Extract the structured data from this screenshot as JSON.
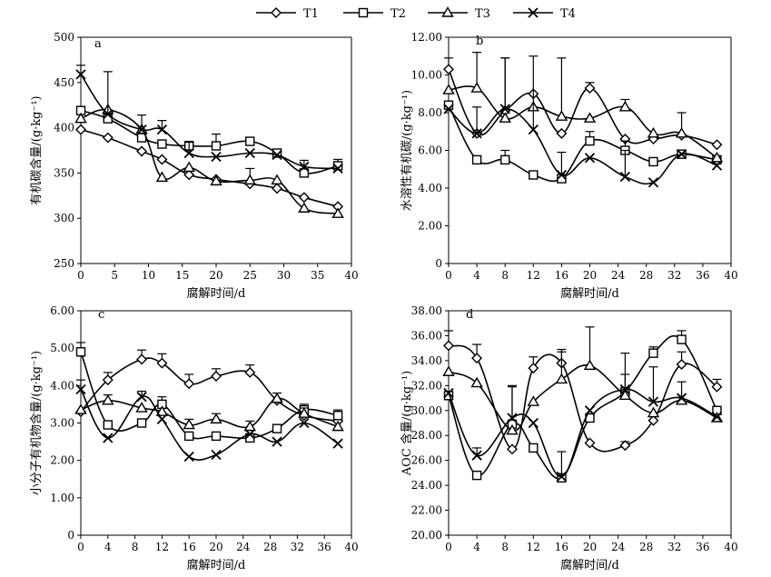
{
  "legend": [
    {
      "name": "T1",
      "marker": "diamond"
    },
    {
      "name": "T2",
      "marker": "square"
    },
    {
      "name": "T3",
      "marker": "triangle"
    },
    {
      "name": "T4",
      "marker": "cross"
    }
  ],
  "chart_data": [
    {
      "type": "line",
      "panel_label": "a",
      "xlabel": "腐解时间/d",
      "ylabel": "有机碳含量/(g·kg⁻¹)",
      "xlim": [
        0,
        40
      ],
      "ylim": [
        250,
        500
      ],
      "x_ticks": [
        0,
        5,
        10,
        15,
        20,
        25,
        30,
        35,
        40
      ],
      "y_ticks": [
        250,
        300,
        350,
        400,
        450,
        500
      ],
      "y_tick_labels": [
        "250",
        "300",
        "350",
        "400",
        "450",
        "500"
      ],
      "series": [
        {
          "name": "T1",
          "marker": "diamond",
          "x": [
            0,
            4,
            9,
            12,
            16,
            20,
            25,
            29,
            33,
            38
          ],
          "values": [
            398,
            389,
            374,
            365,
            348,
            343,
            338,
            333,
            323,
            313
          ],
          "errors": [
            0,
            0,
            0,
            0,
            0,
            0,
            0,
            0,
            0,
            0
          ]
        },
        {
          "name": "T2",
          "marker": "square",
          "x": [
            0,
            4,
            9,
            12,
            16,
            20,
            25,
            29,
            33,
            38
          ],
          "values": [
            419,
            410,
            389,
            382,
            380,
            380,
            385,
            372,
            350,
            358
          ],
          "errors": [
            0,
            0,
            0,
            0,
            5,
            13,
            0,
            0,
            0,
            7
          ]
        },
        {
          "name": "T3",
          "marker": "triangle",
          "x": [
            0,
            4,
            9,
            12,
            16,
            20,
            25,
            29,
            33,
            38
          ],
          "values": [
            410,
            420,
            398,
            345,
            356,
            341,
            342,
            342,
            311,
            305
          ],
          "errors": [
            0,
            0,
            0,
            0,
            0,
            0,
            13,
            0,
            0,
            0
          ]
        },
        {
          "name": "T4",
          "marker": "cross",
          "x": [
            0,
            4,
            9,
            12,
            16,
            20,
            25,
            29,
            33,
            38
          ],
          "values": [
            459,
            415,
            398,
            398,
            372,
            368,
            372,
            370,
            357,
            355
          ],
          "errors": [
            10,
            47,
            16,
            10,
            12,
            0,
            0,
            0,
            7,
            0
          ]
        }
      ]
    },
    {
      "type": "line",
      "panel_label": "b",
      "xlabel": "腐解时间/d",
      "ylabel": "水溶性有机碳/(g·kg⁻¹)",
      "xlim": [
        0,
        40
      ],
      "ylim": [
        0,
        12
      ],
      "x_ticks": [
        0,
        4,
        8,
        12,
        16,
        20,
        24,
        28,
        32,
        36,
        40
      ],
      "y_ticks": [
        0,
        2,
        4,
        6,
        8,
        10,
        12
      ],
      "y_tick_labels": [
        "0",
        "2.00",
        "4.00",
        "6.00",
        "8.00",
        "10.00",
        "12.00"
      ],
      "series": [
        {
          "name": "T1",
          "marker": "diamond",
          "x": [
            0,
            4,
            8,
            12,
            16,
            20,
            25,
            29,
            33,
            38
          ],
          "values": [
            10.3,
            6.9,
            8.1,
            9.0,
            6.9,
            9.3,
            6.6,
            6.6,
            6.8,
            6.3
          ],
          "errors": [
            0.6,
            0,
            2.8,
            0,
            0,
            0.3,
            0,
            0,
            0,
            0
          ]
        },
        {
          "name": "T2",
          "marker": "square",
          "x": [
            0,
            4,
            8,
            12,
            16,
            20,
            25,
            29,
            33,
            38
          ],
          "values": [
            8.4,
            5.5,
            5.5,
            4.7,
            4.5,
            6.5,
            6.0,
            5.4,
            5.8,
            5.5
          ],
          "errors": [
            0,
            0,
            0.5,
            0,
            0,
            0.5,
            0.5,
            0,
            0,
            0
          ]
        },
        {
          "name": "T3",
          "marker": "triangle",
          "x": [
            0,
            4,
            8,
            12,
            16,
            20,
            25,
            29,
            33,
            38
          ],
          "values": [
            9.2,
            9.3,
            7.7,
            8.3,
            7.8,
            7.7,
            8.3,
            6.9,
            6.9,
            5.6
          ],
          "errors": [
            0,
            1.9,
            0,
            0,
            3.1,
            0,
            0.4,
            0,
            1.1,
            0
          ]
        },
        {
          "name": "T4",
          "marker": "cross",
          "x": [
            0,
            4,
            8,
            12,
            16,
            20,
            25,
            29,
            33,
            38
          ],
          "values": [
            8.2,
            6.9,
            8.2,
            7.1,
            4.7,
            5.6,
            4.6,
            4.3,
            5.8,
            5.2
          ],
          "errors": [
            0,
            1.4,
            2.7,
            3.9,
            1.2,
            0,
            1.4,
            0,
            0,
            0
          ]
        }
      ]
    },
    {
      "type": "line",
      "panel_label": "c",
      "xlabel": "腐解时间/d",
      "ylabel": "小分子有机物含量/(g·kg⁻¹)",
      "xlim": [
        0,
        40
      ],
      "ylim": [
        0,
        6
      ],
      "x_ticks": [
        0,
        4,
        8,
        12,
        16,
        20,
        24,
        28,
        32,
        36,
        40
      ],
      "y_ticks": [
        0,
        1,
        2,
        3,
        4,
        5,
        6
      ],
      "y_tick_labels": [
        "0",
        "1.00",
        "2.00",
        "3.00",
        "4.00",
        "5.00",
        "6.00"
      ],
      "series": [
        {
          "name": "T1",
          "marker": "diamond",
          "x": [
            0,
            4,
            9,
            12,
            16,
            20,
            25,
            29,
            33,
            38
          ],
          "values": [
            3.3,
            4.15,
            4.7,
            4.6,
            4.05,
            4.25,
            4.35,
            3.6,
            3.2,
            3.05
          ],
          "errors": [
            0,
            0.2,
            0.25,
            0.25,
            0.25,
            0.2,
            0.2,
            0,
            0,
            0.2
          ]
        },
        {
          "name": "T2",
          "marker": "square",
          "x": [
            0,
            4,
            9,
            12,
            16,
            20,
            25,
            29,
            33,
            38
          ],
          "values": [
            4.9,
            2.95,
            3.0,
            3.5,
            2.65,
            2.65,
            2.6,
            2.85,
            3.35,
            3.2
          ],
          "errors": [
            0.25,
            0,
            0,
            0.2,
            0,
            0,
            0,
            0,
            0.15,
            0.15
          ]
        },
        {
          "name": "T3",
          "marker": "triangle",
          "x": [
            0,
            4,
            9,
            12,
            16,
            20,
            25,
            29,
            33,
            38
          ],
          "values": [
            3.35,
            3.6,
            3.4,
            3.3,
            2.95,
            3.1,
            2.9,
            3.65,
            3.25,
            2.9
          ],
          "errors": [
            0,
            0.15,
            0,
            0,
            0.15,
            0.15,
            0.15,
            0.15,
            0.15,
            0
          ]
        },
        {
          "name": "T4",
          "marker": "cross",
          "x": [
            0,
            4,
            9,
            12,
            16,
            20,
            25,
            29,
            33,
            38
          ],
          "values": [
            3.9,
            2.6,
            3.7,
            3.1,
            2.1,
            2.15,
            2.7,
            2.5,
            3.0,
            2.45
          ],
          "errors": [
            0.25,
            0,
            0.15,
            0,
            0,
            0,
            0,
            0,
            0,
            0
          ]
        }
      ]
    },
    {
      "type": "line",
      "panel_label": "d",
      "xlabel": "腐解时间/d",
      "ylabel": "AOC 含量/(g·kg⁻¹)",
      "xlim": [
        0,
        40
      ],
      "ylim": [
        20,
        38
      ],
      "x_ticks": [
        0,
        4,
        8,
        12,
        16,
        20,
        24,
        28,
        32,
        36,
        40
      ],
      "y_ticks": [
        20,
        22,
        24,
        26,
        28,
        30,
        32,
        34,
        36,
        38
      ],
      "y_tick_labels": [
        "20.00",
        "22.00",
        "24.00",
        "26.00",
        "28.00",
        "30.00",
        "32.00",
        "34.00",
        "36.00",
        "38.00"
      ],
      "series": [
        {
          "name": "T1",
          "marker": "diamond",
          "x": [
            0,
            4,
            9,
            12,
            16,
            20,
            25,
            29,
            33,
            38
          ],
          "values": [
            35.2,
            34.2,
            26.9,
            33.4,
            33.8,
            27.4,
            27.2,
            29.2,
            33.7,
            31.9
          ],
          "errors": [
            1.2,
            1.1,
            0,
            0.9,
            0.9,
            0,
            0.3,
            0,
            1.0,
            0.6
          ]
        },
        {
          "name": "T2",
          "marker": "square",
          "x": [
            0,
            4,
            9,
            12,
            16,
            20,
            25,
            29,
            33,
            38
          ],
          "values": [
            31.2,
            24.8,
            28.9,
            27.0,
            24.6,
            29.4,
            31.5,
            34.6,
            35.7,
            30.0
          ],
          "errors": [
            0,
            0,
            3.0,
            0,
            0,
            0,
            1.4,
            0.5,
            0.7,
            0
          ]
        },
        {
          "name": "T3",
          "marker": "triangle",
          "x": [
            0,
            4,
            9,
            12,
            16,
            20,
            25,
            29,
            33,
            38
          ],
          "values": [
            33.1,
            32.2,
            28.4,
            30.7,
            32.5,
            33.6,
            31.2,
            29.8,
            30.8,
            29.4
          ],
          "errors": [
            0,
            0,
            0,
            0,
            2.4,
            3.1,
            0,
            0,
            0,
            0
          ]
        },
        {
          "name": "T4",
          "marker": "cross",
          "x": [
            0,
            4,
            9,
            12,
            16,
            20,
            25,
            29,
            33,
            38
          ],
          "values": [
            31.4,
            26.4,
            29.4,
            29.0,
            24.7,
            30.0,
            31.7,
            30.7,
            31.0,
            29.5
          ],
          "errors": [
            0,
            0.6,
            2.6,
            0,
            2.0,
            0,
            2.9,
            2.8,
            1.3,
            0
          ]
        }
      ]
    }
  ]
}
